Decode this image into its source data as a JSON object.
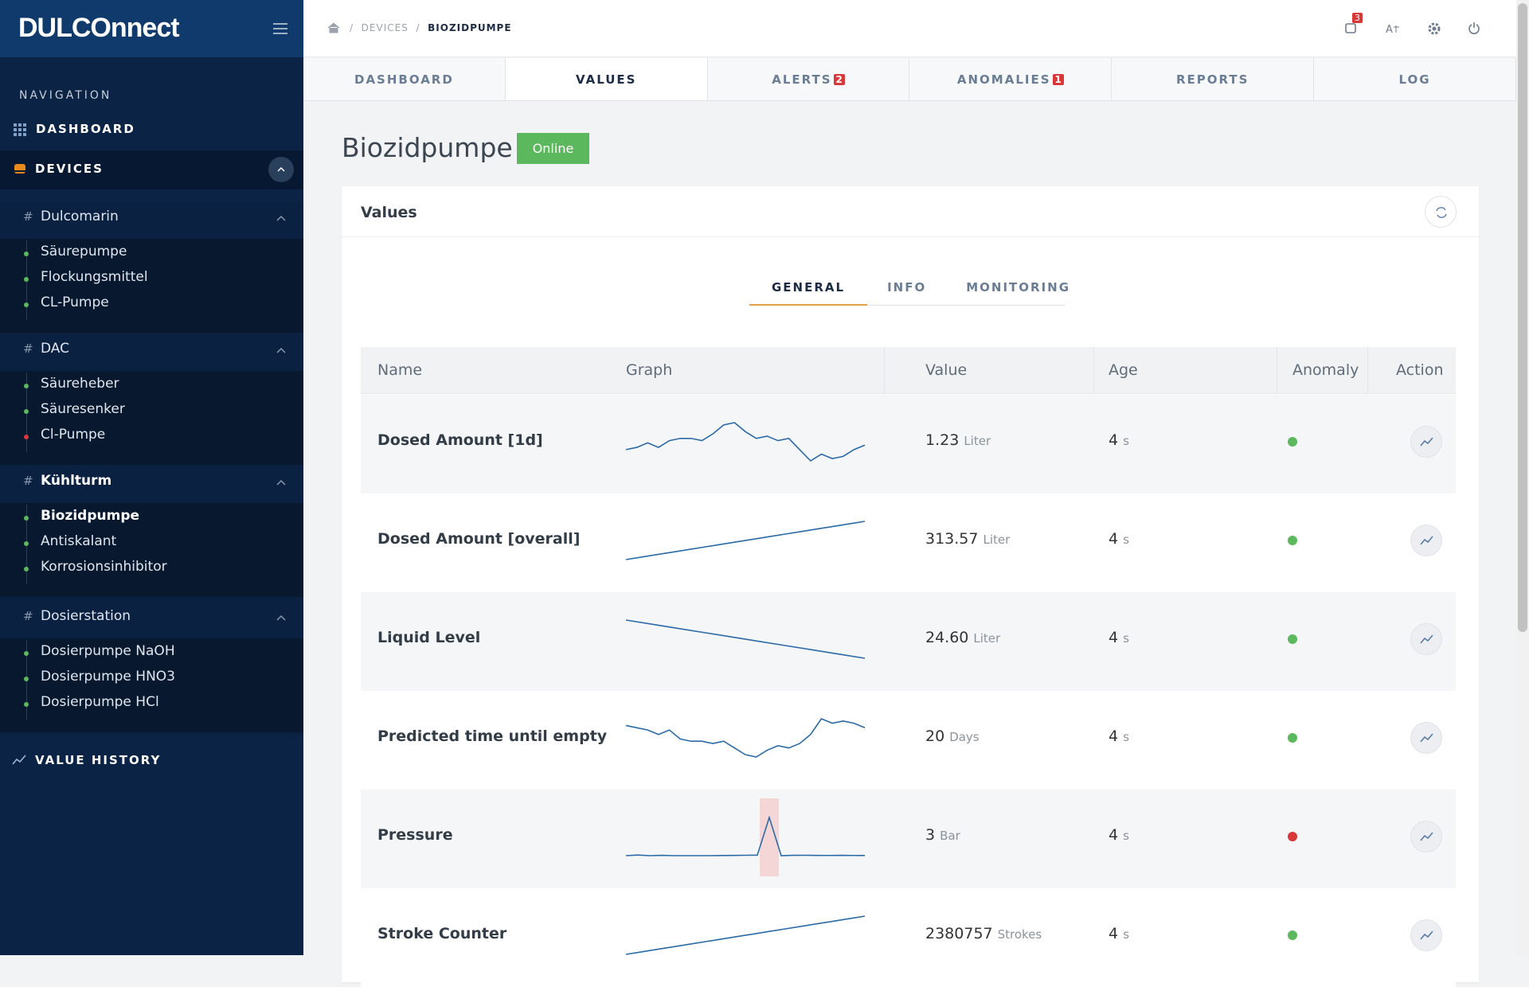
{
  "brand": "DULCOnnect",
  "sidebar": {
    "nav_heading": "NAVIGATION",
    "dashboard": "DASHBOARD",
    "devices": "DEVICES",
    "value_history": "VALUE HISTORY",
    "groups": [
      {
        "name": "Dulcomarin",
        "active": false,
        "items": [
          {
            "label": "Säurepumpe",
            "status": "online",
            "active": false
          },
          {
            "label": "Flockungsmittel",
            "status": "online",
            "active": false
          },
          {
            "label": "CL-Pumpe",
            "status": "online",
            "active": false
          }
        ]
      },
      {
        "name": "DAC",
        "active": false,
        "items": [
          {
            "label": "Säureheber",
            "status": "online",
            "active": false
          },
          {
            "label": "Säuresenker",
            "status": "online",
            "active": false
          },
          {
            "label": "Cl-Pumpe",
            "status": "offline",
            "active": false
          }
        ]
      },
      {
        "name": "Kühlturm",
        "active": true,
        "items": [
          {
            "label": "Biozidpumpe",
            "status": "online",
            "active": true
          },
          {
            "label": "Antiskalant",
            "status": "online",
            "active": false
          },
          {
            "label": "Korrosionsinhibitor",
            "status": "online",
            "active": false
          }
        ]
      },
      {
        "name": "Dosierstation",
        "active": false,
        "items": [
          {
            "label": "Dosierpumpe NaOH",
            "status": "online",
            "active": false
          },
          {
            "label": "Dosierpumpe HNO3",
            "status": "online",
            "active": false
          },
          {
            "label": "Dosierpumpe HCl",
            "status": "online",
            "active": false
          }
        ]
      }
    ]
  },
  "breadcrumb": [
    "DEVICES",
    "BIOZIDPUMPE"
  ],
  "notifications": 3,
  "tabs": [
    {
      "label": "DASHBOARD",
      "active": false
    },
    {
      "label": "VALUES",
      "active": true
    },
    {
      "label": "ALERTS",
      "badge": 2,
      "active": false
    },
    {
      "label": "ANOMALIES",
      "badge": 1,
      "active": false
    },
    {
      "label": "REPORTS",
      "active": false
    },
    {
      "label": "LOG",
      "active": false
    }
  ],
  "device": {
    "name": "Biozidpumpe",
    "status": "Online"
  },
  "panel": {
    "title": "Values",
    "subtabs": [
      "GENERAL",
      "INFO",
      "MONITORING"
    ],
    "active_subtab": 0
  },
  "table": {
    "columns": [
      "Name",
      "Graph",
      "Value",
      "Age",
      "Anomaly",
      "Action"
    ],
    "rows": [
      {
        "name": "Dosed Amount [1d]",
        "graph": [
          40,
          41,
          43,
          41,
          44,
          45,
          45,
          44,
          47,
          51,
          52,
          48,
          45,
          46,
          44,
          45,
          40,
          35,
          38,
          36,
          37,
          40,
          42
        ],
        "value": "1.23",
        "unit": "Liter",
        "age": "4",
        "age_unit": "s",
        "anomaly": false
      },
      {
        "name": "Dosed Amount [overall]",
        "graph": [
          10,
          12,
          14,
          16,
          18,
          20,
          22,
          24,
          26,
          28,
          30,
          32,
          34,
          36,
          38,
          40
        ],
        "value": "313.57",
        "unit": "Liter",
        "age": "4",
        "age_unit": "s",
        "anomaly": false
      },
      {
        "name": "Liquid Level",
        "graph": [
          40,
          38,
          36,
          34,
          32,
          30,
          28,
          26,
          24,
          22
        ],
        "value": "24.60",
        "unit": "Liter",
        "age": "4",
        "age_unit": "s",
        "anomaly": false
      },
      {
        "name": "Predicted time until empty",
        "graph": [
          45,
          44,
          43,
          41,
          43,
          39,
          38,
          38,
          37,
          38,
          35,
          32,
          31,
          34,
          36,
          35,
          37,
          41,
          48,
          46,
          47,
          46,
          44
        ],
        "value": "20",
        "unit": "Days",
        "age": "4",
        "age_unit": "s",
        "anomaly": false
      },
      {
        "name": "Pressure",
        "graph": [
          3,
          4,
          3,
          3.5,
          3,
          3,
          3,
          3,
          3.2,
          3.4,
          3.6,
          3.8,
          60,
          3,
          3.5,
          3.6,
          3.4,
          3.3,
          3.5,
          3.3,
          3.2
        ],
        "value": "3",
        "unit": "Bar",
        "age": "4",
        "age_unit": "s",
        "anomaly": true
      },
      {
        "name": "Stroke Counter",
        "graph": [
          10,
          12,
          14,
          16,
          18,
          20,
          22,
          24,
          26,
          28,
          30,
          32,
          34,
          36,
          38,
          40
        ],
        "value": "2380757",
        "unit": "Strokes",
        "age": "4",
        "age_unit": "s",
        "anomaly": false
      }
    ]
  }
}
